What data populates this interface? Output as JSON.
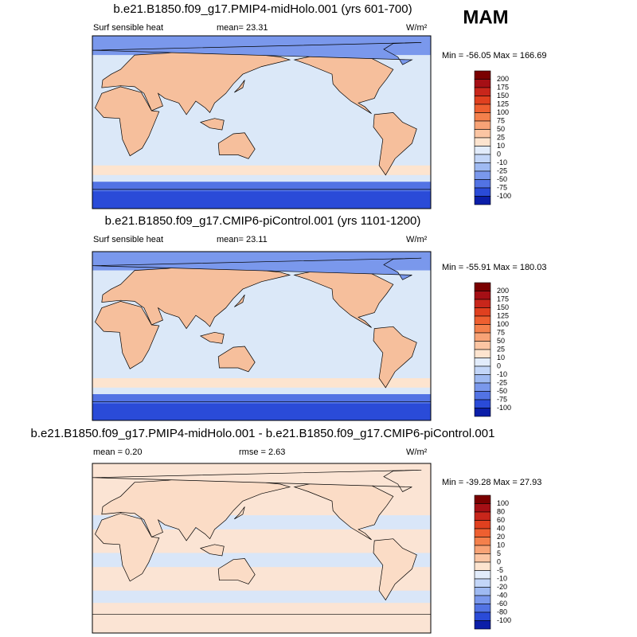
{
  "figure_label": "MAM",
  "colorbar_colors": [
    "#7a0000",
    "#a50f15",
    "#c8261b",
    "#e0401f",
    "#ee5f30",
    "#f4804c",
    "#f8a376",
    "#fbc5a3",
    "#fde4cf",
    "#e2ecfb",
    "#c3d6f8",
    "#9fbaf2",
    "#7a98ec",
    "#5273e4",
    "#2a4bd8",
    "#0b1ea8"
  ],
  "panels": [
    {
      "title": "b.e21.B1850.f09_g17.PMIP4-midHolo.001 (yrs 601-700)",
      "variable": "Surf sensible heat",
      "mean": "mean=  23.31",
      "units": "W/m²",
      "minmax": "Min = -56.05 Max = 166.69",
      "colorbar_labels": [
        200,
        175,
        150,
        125,
        100,
        75,
        50,
        25,
        10,
        0,
        -10,
        -25,
        -50,
        -75,
        -100
      ]
    },
    {
      "title": "b.e21.B1850.f09_g17.CMIP6-piControl.001 (yrs 1101-1200)",
      "variable": "Surf sensible heat",
      "mean": "mean=  23.11",
      "units": "W/m²",
      "minmax": "Min = -55.91 Max = 180.03",
      "colorbar_labels": [
        200,
        175,
        150,
        125,
        100,
        75,
        50,
        25,
        10,
        0,
        -10,
        -25,
        -50,
        -75,
        -100
      ]
    },
    {
      "title": "b.e21.B1850.f09_g17.PMIP4-midHolo.001 - b.e21.B1850.f09_g17.CMIP6-piControl.001",
      "mean": "mean =   0.20",
      "rmse": "rmse =   2.63",
      "units": "W/m²",
      "minmax": "Min = -39.28 Max =  27.93",
      "colorbar_labels": [
        100,
        80,
        60,
        40,
        20,
        10,
        5,
        0,
        -5,
        -10,
        -20,
        -40,
        -60,
        -80,
        -100
      ]
    }
  ]
}
